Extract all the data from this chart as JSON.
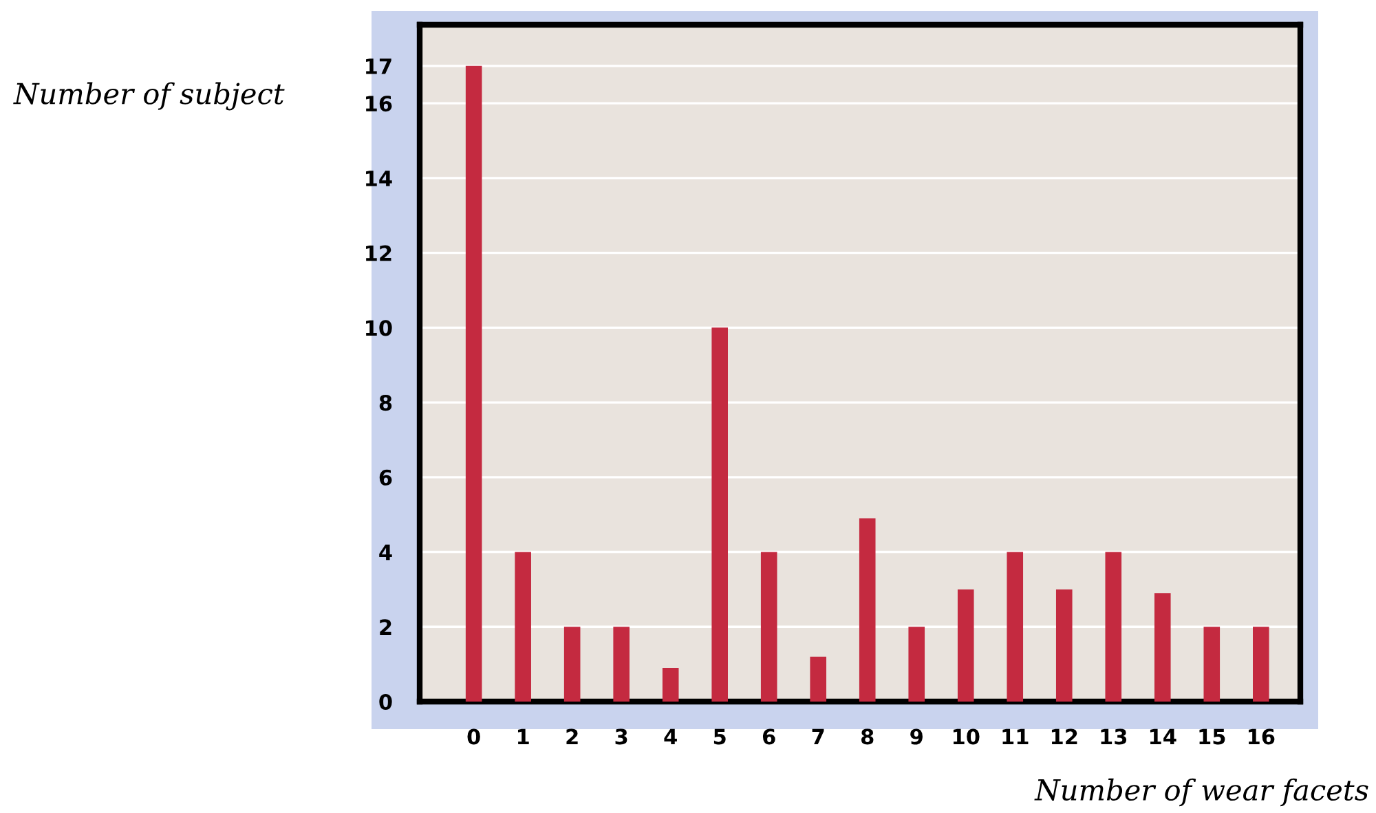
{
  "chart_data": {
    "type": "bar",
    "xlabel": "Number of wear facets",
    "ylabel": "Number of subject",
    "categories": [
      "0",
      "1",
      "2",
      "3",
      "4",
      "5",
      "6",
      "7",
      "8",
      "9",
      "10",
      "11",
      "12",
      "13",
      "14",
      "15",
      "16"
    ],
    "values": [
      17,
      4,
      2,
      2,
      0.9,
      10,
      4,
      1.2,
      4.9,
      2,
      3,
      4,
      3,
      4,
      2.9,
      2,
      2
    ],
    "color": "#c42a40",
    "ylim": [
      0,
      18.1
    ],
    "yticks": [
      0,
      2,
      4,
      6,
      8,
      10,
      12,
      14,
      16,
      17
    ],
    "grid": "y"
  }
}
